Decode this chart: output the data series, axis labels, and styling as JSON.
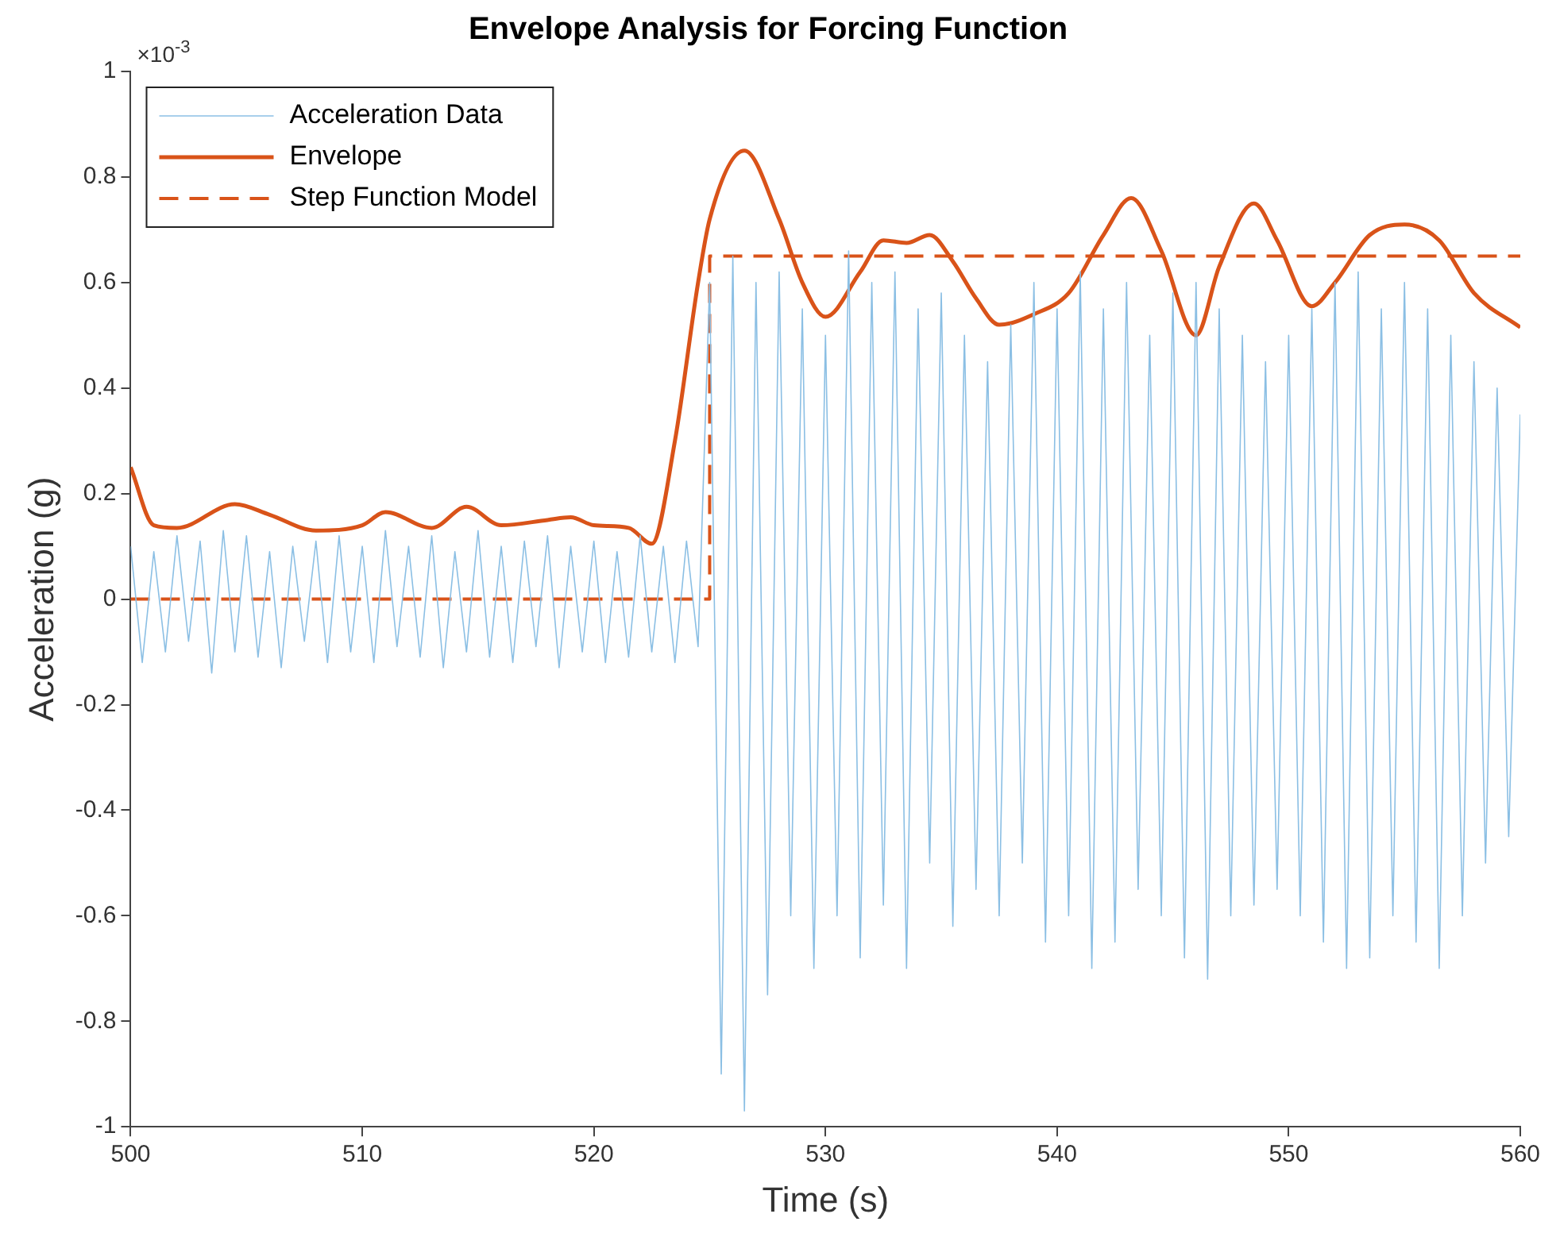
{
  "chart_data": {
    "type": "line",
    "title": "Envelope Analysis for Forcing Function",
    "xlabel": "Time (s)",
    "ylabel": "Acceleration (g)",
    "annotations": [
      "×10$^{-3}$"
    ],
    "xlim": [
      500,
      560
    ],
    "xticks": [
      500,
      510,
      520,
      530,
      540,
      550,
      560
    ],
    "ylim": [
      -1,
      1
    ],
    "yticks": [
      -1,
      -0.8,
      -0.6,
      -0.4,
      -0.2,
      0,
      0.2,
      0.4,
      0.6,
      0.8,
      1
    ],
    "grid": false,
    "legend": "top left",
    "marker": "none",
    "series": [
      {
        "name": "Acceleration Data",
        "color": "#8bbfe4",
        "line_style": "solid",
        "x": [
          500,
          500.5,
          501,
          501.5,
          502,
          502.5,
          503,
          503.5,
          504,
          504.5,
          505,
          505.5,
          506,
          506.5,
          507,
          507.5,
          508,
          508.5,
          509,
          509.5,
          510,
          510.5,
          511,
          511.5,
          512,
          512.5,
          513,
          513.5,
          514,
          514.5,
          515,
          515.5,
          516,
          516.5,
          517,
          517.5,
          518,
          518.5,
          519,
          519.5,
          520,
          520.5,
          521,
          521.5,
          522,
          522.5,
          523,
          523.5,
          524,
          524.5,
          525,
          525.5,
          526,
          526.5,
          527,
          527.5,
          528,
          528.5,
          529,
          529.5,
          530,
          530.5,
          531,
          531.5,
          532,
          532.5,
          533,
          533.5,
          534,
          534.5,
          535,
          535.5,
          536,
          536.5,
          537,
          537.5,
          538,
          538.5,
          539,
          539.5,
          540,
          540.5,
          541,
          541.5,
          542,
          542.5,
          543,
          543.5,
          544,
          544.5,
          545,
          545.5,
          546,
          546.5,
          547,
          547.5,
          548,
          548.5,
          549,
          549.5,
          550,
          550.5,
          551,
          551.5,
          552,
          552.5,
          553,
          553.5,
          554,
          554.5,
          555,
          555.5,
          556,
          556.5,
          557,
          557.5,
          558,
          558.5,
          559,
          559.5,
          560
        ],
        "values": [
          0.1,
          -0.12,
          0.09,
          -0.1,
          0.12,
          -0.08,
          0.11,
          -0.14,
          0.13,
          -0.1,
          0.12,
          -0.11,
          0.09,
          -0.13,
          0.1,
          -0.08,
          0.11,
          -0.12,
          0.12,
          -0.1,
          0.1,
          -0.12,
          0.13,
          -0.09,
          0.1,
          -0.11,
          0.12,
          -0.13,
          0.09,
          -0.1,
          0.13,
          -0.11,
          0.1,
          -0.12,
          0.11,
          -0.09,
          0.12,
          -0.13,
          0.1,
          -0.1,
          0.11,
          -0.12,
          0.09,
          -0.11,
          0.12,
          -0.1,
          0.1,
          -0.12,
          0.11,
          -0.09,
          0.6,
          -0.9,
          0.65,
          -0.97,
          0.6,
          -0.75,
          0.62,
          -0.6,
          0.55,
          -0.7,
          0.5,
          -0.6,
          0.66,
          -0.68,
          0.6,
          -0.58,
          0.62,
          -0.7,
          0.55,
          -0.5,
          0.58,
          -0.62,
          0.5,
          -0.55,
          0.45,
          -0.6,
          0.52,
          -0.5,
          0.6,
          -0.65,
          0.55,
          -0.6,
          0.62,
          -0.7,
          0.55,
          -0.65,
          0.6,
          -0.55,
          0.5,
          -0.6,
          0.58,
          -0.68,
          0.6,
          -0.72,
          0.55,
          -0.6,
          0.5,
          -0.58,
          0.45,
          -0.55,
          0.5,
          -0.6,
          0.55,
          -0.65,
          0.6,
          -0.7,
          0.62,
          -0.68,
          0.55,
          -0.6,
          0.6,
          -0.65,
          0.55,
          -0.7,
          0.5,
          -0.6,
          0.45,
          -0.5,
          0.4,
          -0.45,
          0.35
        ]
      },
      {
        "name": "Envelope",
        "color": "#d95319",
        "line_style": "solid",
        "x": [
          500,
          501,
          502,
          504.5,
          506,
          508,
          510,
          511,
          513,
          514.5,
          516,
          518,
          519,
          520,
          521.5,
          522.5,
          523.5,
          524.5,
          525,
          526.5,
          528,
          529,
          530,
          531.5,
          532.5,
          533.5,
          534.5,
          535.5,
          536.5,
          537.5,
          539,
          540.5,
          542,
          543.2,
          544.5,
          546,
          547,
          548.5,
          549.5,
          551,
          552,
          553.5,
          555,
          556.5,
          558,
          560
        ],
        "values": [
          0.25,
          0.14,
          0.135,
          0.18,
          0.16,
          0.13,
          0.14,
          0.165,
          0.135,
          0.175,
          0.14,
          0.15,
          0.155,
          0.14,
          0.135,
          0.105,
          0.3,
          0.6,
          0.72,
          0.85,
          0.72,
          0.6,
          0.535,
          0.62,
          0.68,
          0.675,
          0.69,
          0.64,
          0.57,
          0.52,
          0.54,
          0.58,
          0.69,
          0.76,
          0.66,
          0.5,
          0.63,
          0.75,
          0.68,
          0.555,
          0.6,
          0.69,
          0.71,
          0.68,
          0.58,
          0.515
        ]
      },
      {
        "name": "Step Function Model",
        "color": "#d95319",
        "line_style": "dashed",
        "x": [
          500,
          525,
          525,
          560
        ],
        "values": [
          0,
          0,
          0.65,
          0.65
        ]
      }
    ]
  }
}
